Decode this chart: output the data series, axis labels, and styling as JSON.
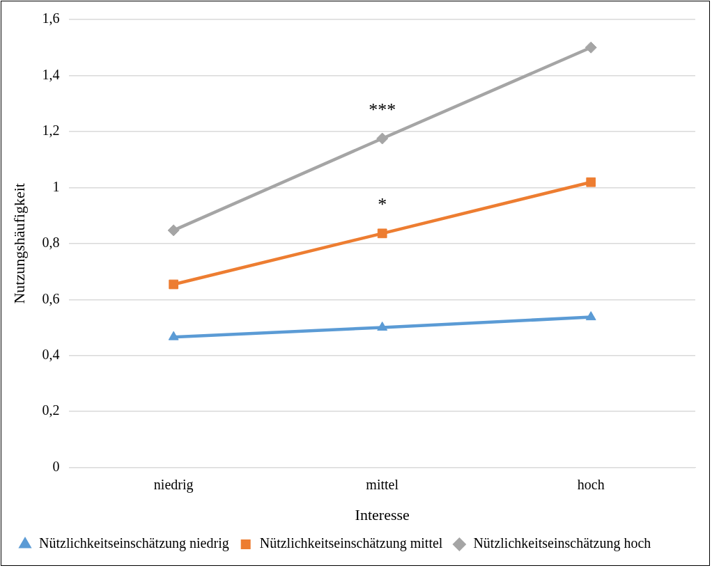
{
  "chart_data": {
    "type": "line",
    "xlabel": "Interesse",
    "ylabel": "Nutzungshäufigkeit",
    "categories": [
      "niedrig",
      "mittel",
      "hoch"
    ],
    "series": [
      {
        "name": "Nützlichkeitseinschätzung niedrig",
        "color": "#5b9bd5",
        "marker": "triangle",
        "values": [
          0.466,
          0.5,
          0.537
        ]
      },
      {
        "name": "Nützlichkeitseinschätzung mittel",
        "color": "#ed7d31",
        "marker": "square",
        "values": [
          0.654,
          0.836,
          1.019
        ]
      },
      {
        "name": "Nützlichkeitseinschätzung hoch",
        "color": "#a5a5a5",
        "marker": "diamond",
        "values": [
          0.847,
          1.175,
          1.5
        ]
      }
    ],
    "ylim": [
      0,
      1.6
    ],
    "yticks": [
      {
        "value": 0,
        "label": "0"
      },
      {
        "value": 0.2,
        "label": "0,2"
      },
      {
        "value": 0.4,
        "label": "0,4"
      },
      {
        "value": 0.6,
        "label": "0,6"
      },
      {
        "value": 0.8,
        "label": "0,8"
      },
      {
        "value": 1,
        "label": "1"
      },
      {
        "value": 1.2,
        "label": "1,2"
      },
      {
        "value": 1.4,
        "label": "1,4"
      },
      {
        "value": 1.6,
        "label": "1,6"
      }
    ],
    "grid": "y",
    "legend": "bottom",
    "line_style": "solid",
    "annotations": [
      "***",
      "*"
    ]
  }
}
